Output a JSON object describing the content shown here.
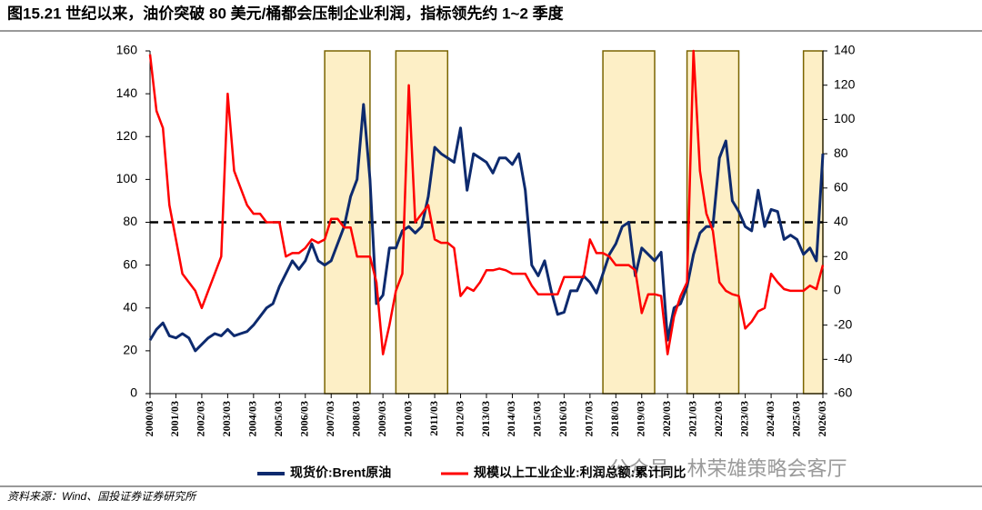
{
  "chart_data": {
    "type": "line",
    "title": "图15.21 世纪以来，油价突破 80 美元/桶都会压制企业利润，指标领先约 1~2 季度",
    "source": "资料来源：Wind、国投证券证券研究所",
    "watermark": "公众号 · 林荣雄策略会客厅",
    "x": [
      "2000/03",
      "2000/06",
      "2000/09",
      "2000/12",
      "2001/03",
      "2001/06",
      "2001/09",
      "2001/12",
      "2002/03",
      "2002/06",
      "2002/09",
      "2002/12",
      "2003/03",
      "2003/06",
      "2003/09",
      "2003/12",
      "2004/03",
      "2004/06",
      "2004/09",
      "2004/12",
      "2005/03",
      "2005/06",
      "2005/09",
      "2005/12",
      "2006/03",
      "2006/06",
      "2006/09",
      "2006/12",
      "2007/03",
      "2007/06",
      "2007/09",
      "2007/12",
      "2008/03",
      "2008/06",
      "2008/09",
      "2008/12",
      "2009/03",
      "2009/06",
      "2009/09",
      "2009/12",
      "2010/03",
      "2010/06",
      "2010/09",
      "2010/12",
      "2011/03",
      "2011/06",
      "2011/09",
      "2011/12",
      "2012/03",
      "2012/06",
      "2012/09",
      "2012/12",
      "2013/03",
      "2013/06",
      "2013/09",
      "2013/12",
      "2014/03",
      "2014/06",
      "2014/09",
      "2014/12",
      "2015/03",
      "2015/06",
      "2015/09",
      "2015/12",
      "2016/03",
      "2016/06",
      "2016/09",
      "2016/12",
      "2017/03",
      "2017/06",
      "2017/09",
      "2017/12",
      "2018/03",
      "2018/06",
      "2018/09",
      "2018/12",
      "2019/03",
      "2019/06",
      "2019/09",
      "2019/12",
      "2020/03",
      "2020/06",
      "2020/09",
      "2020/12",
      "2021/03",
      "2021/06",
      "2021/09",
      "2021/12",
      "2022/03",
      "2022/06",
      "2022/09",
      "2022/12",
      "2023/03",
      "2023/06",
      "2023/09",
      "2023/12",
      "2024/03",
      "2024/06",
      "2024/09",
      "2024/12",
      "2025/03",
      "2025/06",
      "2025/09",
      "2025/12",
      "2026/03"
    ],
    "xticks": [
      "2000/03",
      "2001/03",
      "2002/03",
      "2003/03",
      "2004/03",
      "2005/03",
      "2006/03",
      "2007/03",
      "2008/03",
      "2009/03",
      "2010/03",
      "2011/03",
      "2012/03",
      "2013/03",
      "2014/03",
      "2015/03",
      "2016/03",
      "2017/03",
      "2018/03",
      "2019/03",
      "2020/03",
      "2021/03",
      "2022/03",
      "2023/03",
      "2024/03",
      "2025/03",
      "2026/03"
    ],
    "series": [
      {
        "name": "现货价:Brent原油",
        "color": "#0d2a6e",
        "axis": "y",
        "values": [
          25,
          30,
          33,
          27,
          26,
          28,
          26,
          20,
          23,
          26,
          28,
          27,
          30,
          27,
          28,
          29,
          32,
          36,
          40,
          42,
          50,
          56,
          62,
          58,
          62,
          70,
          62,
          60,
          62,
          70,
          78,
          92,
          100,
          135,
          100,
          42,
          46,
          68,
          68,
          76,
          78,
          75,
          78,
          92,
          115,
          112,
          110,
          108,
          124,
          95,
          112,
          110,
          108,
          103,
          110,
          110,
          107,
          112,
          95,
          60,
          55,
          62,
          48,
          37,
          38,
          48,
          48,
          55,
          52,
          47,
          56,
          65,
          70,
          78,
          80,
          55,
          68,
          65,
          62,
          66,
          25,
          40,
          42,
          50,
          65,
          75,
          78,
          78,
          110,
          118,
          90,
          85,
          78,
          76,
          95,
          78,
          86,
          85,
          72,
          74,
          72,
          65,
          68,
          62,
          112
        ]
      },
      {
        "name": "规模以上工业企业:利润总额:累计同比",
        "color": "#ff0000",
        "axis": "y2",
        "values": [
          138,
          105,
          95,
          50,
          30,
          10,
          5,
          0,
          -10,
          0,
          10,
          20,
          115,
          70,
          60,
          50,
          45,
          45,
          40,
          40,
          40,
          20,
          22,
          22,
          25,
          30,
          28,
          30,
          42,
          42,
          37,
          37,
          20,
          20,
          20,
          5,
          -37,
          -20,
          0,
          10,
          120,
          40,
          45,
          50,
          30,
          28,
          28,
          25,
          -3,
          2,
          0,
          5,
          12,
          12,
          13,
          12,
          10,
          10,
          10,
          3,
          -2,
          -2,
          -2,
          -2,
          8,
          8,
          8,
          8,
          30,
          22,
          22,
          20,
          15,
          15,
          15,
          12,
          -13,
          -2,
          -2,
          -3,
          -37,
          -15,
          -3,
          5,
          140,
          70,
          45,
          35,
          5,
          0,
          -2,
          -3,
          -22,
          -18,
          -12,
          -10,
          10,
          5,
          1,
          0,
          0,
          0,
          3,
          1,
          15
        ]
      }
    ],
    "ylim": [
      0,
      160
    ],
    "yticks": [
      0,
      20,
      40,
      60,
      80,
      100,
      120,
      140,
      160
    ],
    "y2lim": [
      -60,
      140
    ],
    "y2ticks": [
      -60,
      -40,
      -20,
      0,
      20,
      40,
      60,
      80,
      100,
      120,
      140
    ],
    "reference_line": 80,
    "shaded_periods": [
      [
        "2006/12",
        "2008/09"
      ],
      [
        "2009/09",
        "2011/09"
      ],
      [
        "2017/09",
        "2019/09"
      ],
      [
        "2020/12",
        "2022/12"
      ],
      [
        "2025/06",
        "2026/03"
      ]
    ],
    "shade_color": "#fdefc6"
  }
}
